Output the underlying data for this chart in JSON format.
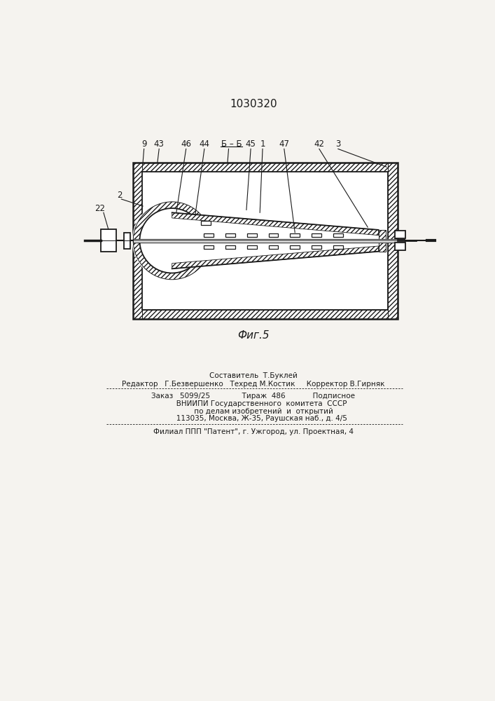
{
  "patent_number": "1030320",
  "fig_label": "Фиг.5",
  "bg_color": "#f5f3ef",
  "line_color": "#1a1a1a",
  "footer_line1": "Составитель  Т.Буклей",
  "footer_line2": "Редактор   Г.Безвершенко   Техред М.Костик     Корректор В.Гирняк",
  "footer_line3": "Заказ   5099/25              Тираж  486            Подписное",
  "footer_line4": "       ВНИИПИ Государственного  комитета  СССР",
  "footer_line5": "         по делам изобретений  и  открытий",
  "footer_line6": "       113035, Москва, Ж-35, Раушская наб., д. 4/5",
  "footer_line7": "Филиал ППП \"Патент\", г. Ужгород, ул. Проектная, 4"
}
